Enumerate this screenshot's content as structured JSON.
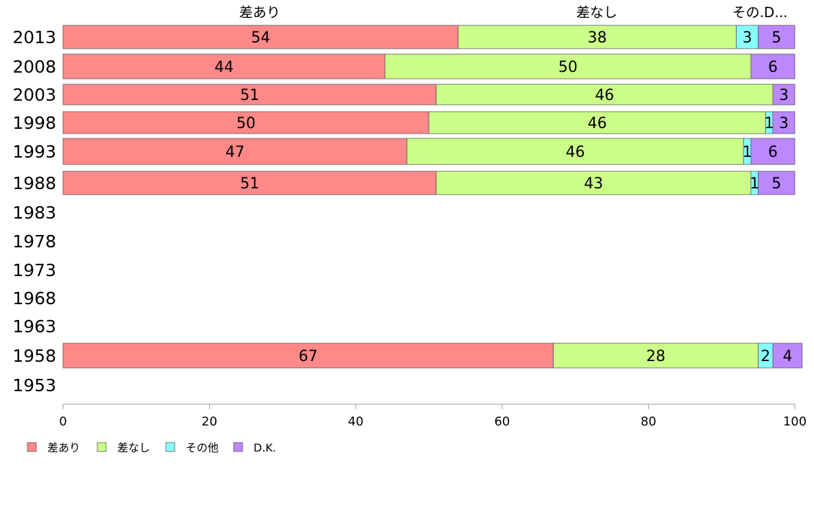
{
  "chart_data": {
    "type": "bar",
    "orientation": "horizontal",
    "stacked": true,
    "categories": [
      "2013",
      "2008",
      "2003",
      "1998",
      "1993",
      "1988",
      "1983",
      "1978",
      "1973",
      "1968",
      "1963",
      "1958",
      "1953"
    ],
    "series": [
      {
        "name": "差あり",
        "color": "#ff8888",
        "values": [
          54,
          44,
          51,
          50,
          47,
          51,
          null,
          null,
          null,
          null,
          null,
          67,
          null
        ]
      },
      {
        "name": "差なし",
        "color": "#ccff88",
        "values": [
          38,
          50,
          46,
          46,
          46,
          43,
          null,
          null,
          null,
          null,
          null,
          28,
          null
        ]
      },
      {
        "name": "その他",
        "color": "#88ffff",
        "values": [
          3,
          0,
          0,
          1,
          1,
          1,
          null,
          null,
          null,
          null,
          null,
          2,
          null
        ]
      },
      {
        "name": "D.K.",
        "color": "#bb88ff",
        "values": [
          5,
          6,
          3,
          3,
          6,
          5,
          null,
          null,
          null,
          null,
          null,
          4,
          null
        ]
      }
    ],
    "top_labels": [
      "差あり",
      "差なし",
      "その.D..."
    ],
    "x_ticks": [
      0,
      20,
      40,
      60,
      80,
      100
    ],
    "xlim": [
      0,
      100
    ],
    "grid": false,
    "legend_position": "bottom-left"
  }
}
